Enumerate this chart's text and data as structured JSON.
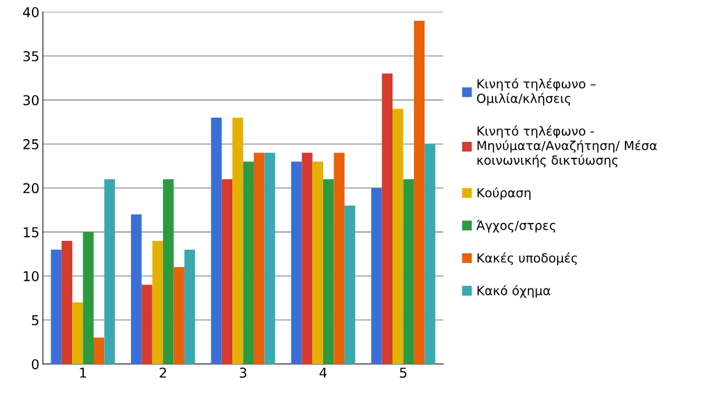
{
  "chart_data": {
    "type": "bar",
    "categories": [
      "1",
      "2",
      "3",
      "4",
      "5"
    ],
    "series": [
      {
        "name": "Κινητό τηλέφωνο –\nΟμιλία/κλήσεις",
        "color": "#3a6fd8",
        "values": [
          13,
          17,
          28,
          23,
          20
        ]
      },
      {
        "name": "Κινητό τηλέφωνο -\nΜηνύματα/Αναζήτηση/ Μέσα\nκοινωνικής δικτύωσης",
        "color": "#d63b2f",
        "values": [
          14,
          9,
          21,
          24,
          33
        ]
      },
      {
        "name": "Κούραση",
        "color": "#e6b000",
        "values": [
          7,
          14,
          28,
          23,
          29
        ]
      },
      {
        "name": "Άγχος/στρες",
        "color": "#2e9a40",
        "values": [
          15,
          21,
          23,
          21,
          21
        ]
      },
      {
        "name": "Κακές υποδομές",
        "color": "#e8620a",
        "values": [
          3,
          11,
          24,
          24,
          39
        ]
      },
      {
        "name": "Κακό όχημα",
        "color": "#3aa8b0",
        "values": [
          21,
          13,
          24,
          18,
          25
        ]
      }
    ],
    "ylim": [
      0,
      40
    ],
    "yticks": [
      0,
      5,
      10,
      15,
      20,
      25,
      30,
      35,
      40
    ],
    "grid": "y",
    "legend": "right"
  }
}
